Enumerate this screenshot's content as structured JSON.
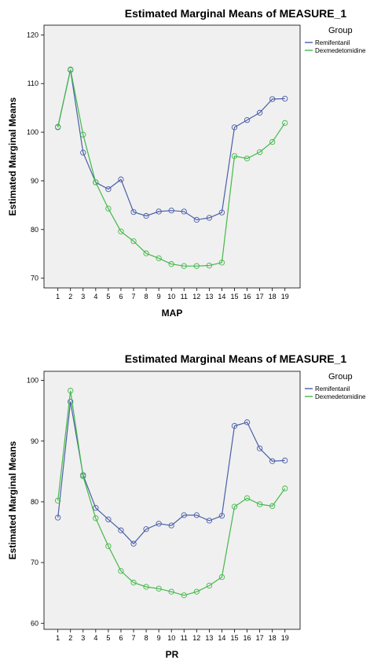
{
  "chart_data": [
    {
      "type": "line",
      "title": "Estimated Marginal Means of MEASURE_1",
      "xlabel": "MAP",
      "ylabel": "Estimated Marginal Means",
      "x": [
        1,
        2,
        3,
        4,
        5,
        6,
        7,
        8,
        9,
        10,
        11,
        12,
        13,
        14,
        15,
        16,
        17,
        18,
        19
      ],
      "ylim": [
        68,
        122
      ],
      "yticks": [
        70,
        80,
        90,
        100,
        110,
        120
      ],
      "grid": false,
      "legend": {
        "title": "Group",
        "position": "right"
      },
      "series": [
        {
          "name": "Remifentanil",
          "color": "#4a5fa8",
          "values": [
            101.1,
            112.8,
            95.8,
            89.7,
            88.3,
            90.3,
            83.6,
            82.8,
            83.7,
            83.9,
            83.7,
            82.0,
            82.4,
            83.5,
            101.0,
            102.5,
            104.0,
            106.8,
            106.9
          ]
        },
        {
          "name": "Dexmedetomidine",
          "color": "#43b949",
          "values": [
            101.0,
            112.9,
            99.5,
            89.7,
            84.3,
            79.6,
            77.6,
            75.1,
            74.1,
            72.9,
            72.5,
            72.5,
            72.6,
            73.2,
            95.1,
            94.6,
            95.9,
            98.0,
            101.9
          ]
        }
      ]
    },
    {
      "type": "line",
      "title": "Estimated Marginal Means of MEASURE_1",
      "xlabel": "PR",
      "ylabel": "Estimated Marginal Means",
      "x": [
        1,
        2,
        3,
        4,
        5,
        6,
        7,
        8,
        9,
        10,
        11,
        12,
        13,
        14,
        15,
        16,
        17,
        18,
        19
      ],
      "ylim": [
        59,
        101.5
      ],
      "yticks": [
        60,
        70,
        80,
        90,
        100
      ],
      "grid": false,
      "legend": {
        "title": "Group",
        "position": "right"
      },
      "series": [
        {
          "name": "Remifentanil",
          "color": "#4a5fa8",
          "values": [
            77.4,
            96.5,
            84.4,
            79.0,
            77.1,
            75.3,
            73.1,
            75.5,
            76.4,
            76.1,
            77.8,
            77.8,
            76.9,
            77.7,
            92.5,
            93.1,
            88.8,
            86.7,
            86.8
          ]
        },
        {
          "name": "Dexmedetomidine",
          "color": "#43b949",
          "values": [
            80.2,
            98.3,
            84.2,
            77.3,
            72.7,
            68.6,
            66.7,
            66.0,
            65.7,
            65.2,
            64.6,
            65.2,
            66.2,
            67.6,
            79.2,
            80.6,
            79.6,
            79.3,
            82.2
          ]
        }
      ]
    }
  ]
}
